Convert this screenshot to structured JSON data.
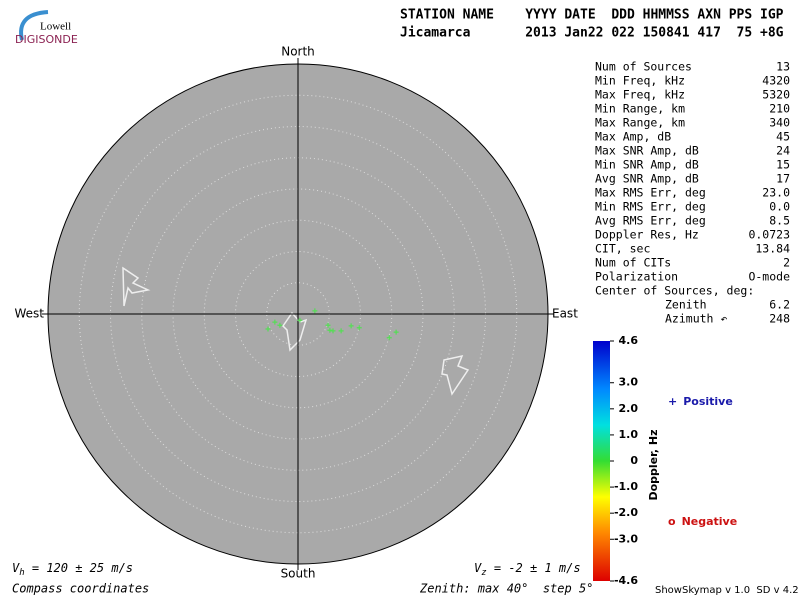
{
  "logo": {
    "top": "Lowell",
    "bottom": "DIGISONDE"
  },
  "header": {
    "line1": "STATION NAME    YYYY DATE  DDD HHMMSS AXN PPS IGP",
    "line2": "Jicamarca       2013 Jan22 022 150841 417  75 +8G"
  },
  "stats": [
    [
      "Num of Sources",
      "13"
    ],
    [
      "Min Freq, kHz",
      "4320"
    ],
    [
      "Max Freq, kHz",
      "5320"
    ],
    [
      "Min Range, km",
      "210"
    ],
    [
      "Max Range, km",
      "340"
    ],
    [
      "Max Amp, dB",
      "45"
    ],
    [
      "Max SNR Amp, dB",
      "24"
    ],
    [
      "Min SNR Amp, dB",
      "15"
    ],
    [
      "Avg SNR Amp, dB",
      "17"
    ],
    [
      "Max RMS Err, deg",
      "23.0"
    ],
    [
      "Min RMS Err, deg",
      "0.0"
    ],
    [
      "Avg RMS Err, deg",
      "8.5"
    ],
    [
      "Doppler Res, Hz",
      "0.0723"
    ],
    [
      "CIT, sec",
      "13.84"
    ],
    [
      "Num of CITs",
      "2"
    ],
    [
      "Polarization",
      "O-mode"
    ]
  ],
  "center": {
    "title": "Center of Sources, deg:",
    "rows": [
      [
        "Zenith",
        "6.2"
      ],
      [
        "Azimuth ↶",
        "248"
      ]
    ]
  },
  "chart_data": {
    "type": "skymap",
    "compass": {
      "north": "North",
      "south": "South",
      "east": "East",
      "west": "West"
    },
    "rlim": [
      0,
      40
    ],
    "rticks": [
      5,
      10,
      15,
      20,
      25,
      30,
      35
    ],
    "series": [
      {
        "color": "#55dd55",
        "x": [
          -4.8,
          -2.9,
          2.7,
          4.8,
          5.6,
          6.9,
          5.1,
          8.5,
          9.8,
          14.6,
          15.7,
          0.3,
          -3.7
        ],
        "values": [
          -2.4,
          -1.8,
          0.5,
          -1.8,
          -2.7,
          -2.7,
          -2.6,
          -1.9,
          -2.2,
          -3.8,
          -2.9,
          -1.0,
          -1.3
        ]
      }
    ],
    "colorbar": {
      "label": "Doppler, Hz",
      "clim": [
        -4.6,
        4.6
      ],
      "ticks": [
        4.6,
        {
          "value": 3,
          "label": "3.0"
        },
        {
          "value": 2,
          "label": "2.0"
        },
        {
          "value": 1,
          "label": "1.0"
        },
        0,
        {
          "value": -1,
          "label": "-1.0"
        },
        {
          "value": -2,
          "label": "-2.0"
        },
        {
          "value": -3,
          "label": "-3.0"
        },
        -4.6
      ]
    },
    "legend": [
      {
        "symbol": "+",
        "label": "Positive",
        "color": "#1a1aaa"
      },
      {
        "symbol": "o",
        "label": "Negative",
        "color": "#cc1111"
      }
    ]
  },
  "footer": {
    "vh": {
      "symbol": "V",
      "sub": "h",
      "text": " = 120 ± 25 m/s"
    },
    "vz": {
      "symbol": "V",
      "sub": "z",
      "text": " = -2 ± 1 m/s"
    },
    "coords": "Compass coordinates",
    "zenith": "Zenith: max 40°  step 5°",
    "version": "ShowSkymap v 1.0  SD v 4.2"
  }
}
